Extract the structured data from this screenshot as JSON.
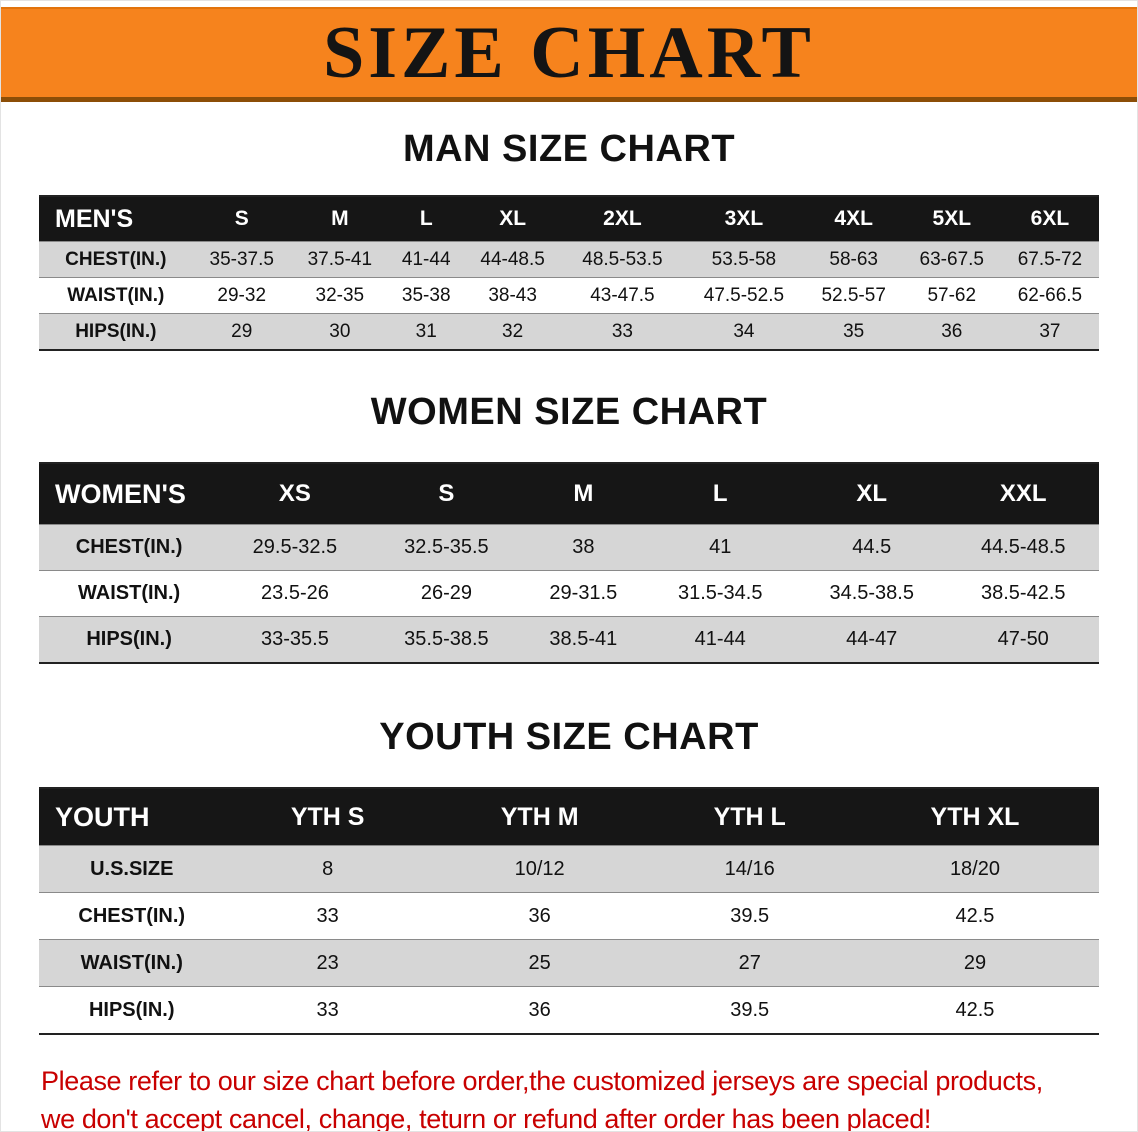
{
  "banner": {
    "title": "SIZE CHART"
  },
  "colors": {
    "banner_bg": "#f6831d",
    "banner_border": "#8c4e07",
    "table_header_bg": "#161616",
    "table_header_text": "#ffffff",
    "row_alt_gray": "#d6d6d6",
    "disclaimer_red": "#c80000"
  },
  "sections": [
    {
      "heading": "MAN SIZE CHART",
      "table": {
        "header": [
          "MEN'S",
          "S",
          "M",
          "L",
          "XL",
          "2XL",
          "3XL",
          "4XL",
          "5XL",
          "6XL"
        ],
        "rows": [
          {
            "label": "CHEST(IN.)",
            "values": [
              "35-37.5",
              "37.5-41",
              "41-44",
              "44-48.5",
              "48.5-53.5",
              "53.5-58",
              "58-63",
              "63-67.5",
              "67.5-72"
            ]
          },
          {
            "label": "WAIST(IN.)",
            "values": [
              "29-32",
              "32-35",
              "35-38",
              "38-43",
              "43-47.5",
              "47.5-52.5",
              "52.5-57",
              "57-62",
              "62-66.5"
            ]
          },
          {
            "label": "HIPS(IN.)",
            "values": [
              "29",
              "30",
              "31",
              "32",
              "33",
              "34",
              "35",
              "36",
              "37"
            ]
          }
        ]
      }
    },
    {
      "heading": "WOMEN SIZE CHART",
      "table": {
        "header": [
          "WOMEN'S",
          "XS",
          "S",
          "M",
          "L",
          "XL",
          "XXL"
        ],
        "rows": [
          {
            "label": "CHEST(IN.)",
            "values": [
              "29.5-32.5",
              "32.5-35.5",
              "38",
              "41",
              "44.5",
              "44.5-48.5"
            ]
          },
          {
            "label": "WAIST(IN.)",
            "values": [
              "23.5-26",
              "26-29",
              "29-31.5",
              "31.5-34.5",
              "34.5-38.5",
              "38.5-42.5"
            ]
          },
          {
            "label": "HIPS(IN.)",
            "values": [
              "33-35.5",
              "35.5-38.5",
              "38.5-41",
              "41-44",
              "44-47",
              "47-50"
            ]
          }
        ]
      }
    },
    {
      "heading": "YOUTH SIZE CHART",
      "table": {
        "header": [
          "YOUTH",
          "YTH S",
          "YTH M",
          "YTH L",
          "YTH XL"
        ],
        "rows": [
          {
            "label": "U.S.SIZE",
            "values": [
              "8",
              "10/12",
              "14/16",
              "18/20"
            ]
          },
          {
            "label": "CHEST(IN.)",
            "values": [
              "33",
              "36",
              "39.5",
              "42.5"
            ]
          },
          {
            "label": "WAIST(IN.)",
            "values": [
              "23",
              "25",
              "27",
              "29"
            ]
          },
          {
            "label": "HIPS(IN.)",
            "values": [
              "33",
              "36",
              "39.5",
              "42.5"
            ]
          }
        ]
      }
    }
  ],
  "disclaimer": {
    "line1": "Please refer to our size chart before order,the customized jerseys are special products,",
    "line2": "we don't accept cancel, change, teturn or refund after order has been placed!"
  }
}
